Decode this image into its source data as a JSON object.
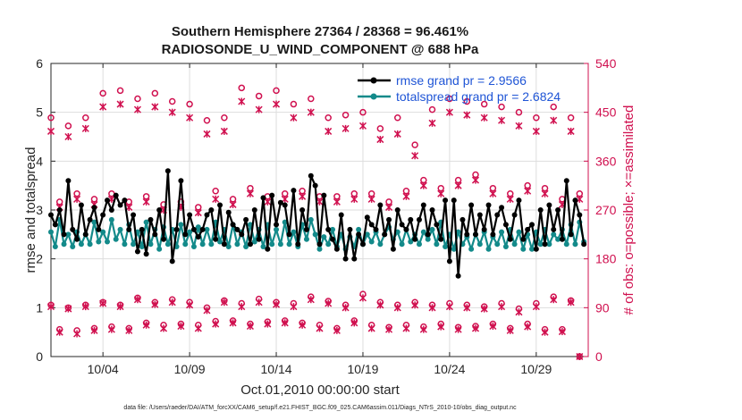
{
  "chart_data": {
    "type": "line",
    "title": "Southern Hemisphere 27364 / 28368 = 96.461%",
    "subtitle": "RADIOSONDE_U_WIND_COMPONENT @ 688 hPa",
    "xlabel": "Oct.01,2010 00:00:00 start",
    "ylabel": "rmse and totalspread",
    "ylabel_right": "# of obs: o=possible; ×=assimilated",
    "footer": "data file: /Users/raeder/DAI/ATM_forcXX/CAM6_setup/f.e21.FHIST_BGC.f09_025.CAM6assim.011/Diags_NTrS_2010-10/obs_diag_output.nc",
    "x_range": [
      1.0,
      32.0
    ],
    "xticks": [
      4,
      9,
      14,
      19,
      24,
      29
    ],
    "xtick_labels": [
      "10/04",
      "10/09",
      "10/14",
      "10/19",
      "10/24",
      "10/29"
    ],
    "ylim": [
      0,
      6
    ],
    "yticks": [
      0,
      1,
      2,
      3,
      4,
      5,
      6
    ],
    "ylim_right": [
      0,
      540
    ],
    "yticks_right": [
      0,
      90,
      180,
      270,
      360,
      450,
      540
    ],
    "legend": [
      {
        "name": "rmse grand pr = 2.9566",
        "color": "#000000"
      },
      {
        "name": "totalspread grand pr = 2.6824",
        "color": "#138a8a"
      }
    ],
    "series": [
      {
        "name": "rmse",
        "color": "#000000",
        "x": [
          1.0,
          1.25,
          1.5,
          1.75,
          2.0,
          2.25,
          2.5,
          2.75,
          3.0,
          3.25,
          3.5,
          3.75,
          4.0,
          4.25,
          4.5,
          4.75,
          5.0,
          5.25,
          5.5,
          5.75,
          6.0,
          6.25,
          6.5,
          6.75,
          7.0,
          7.25,
          7.5,
          7.75,
          8.0,
          8.25,
          8.5,
          8.75,
          9.0,
          9.25,
          9.5,
          9.75,
          10.0,
          10.25,
          10.5,
          10.75,
          11.0,
          11.25,
          11.5,
          11.75,
          12.0,
          12.25,
          12.5,
          12.75,
          13.0,
          13.25,
          13.5,
          13.75,
          14.0,
          14.25,
          14.5,
          14.75,
          15.0,
          15.25,
          15.5,
          15.75,
          16.0,
          16.25,
          16.5,
          16.75,
          17.0,
          17.25,
          17.5,
          17.75,
          18.0,
          18.25,
          18.5,
          18.75,
          19.0,
          19.25,
          19.5,
          19.75,
          20.0,
          20.25,
          20.5,
          20.75,
          21.0,
          21.25,
          21.5,
          21.75,
          22.0,
          22.25,
          22.5,
          22.75,
          23.0,
          23.25,
          23.5,
          23.75,
          24.0,
          24.25,
          24.5,
          24.75,
          25.0,
          25.25,
          25.5,
          25.75,
          26.0,
          26.25,
          26.5,
          26.75,
          27.0,
          27.25,
          27.5,
          27.75,
          28.0,
          28.25,
          28.5,
          28.75,
          29.0,
          29.25,
          29.5,
          29.75,
          30.0,
          30.25,
          30.5,
          30.75,
          31.0,
          31.25,
          31.5,
          31.75
        ],
        "values": [
          2.9,
          2.7,
          3.0,
          2.5,
          3.6,
          2.6,
          2.4,
          3.1,
          2.5,
          2.8,
          3.05,
          2.6,
          2.9,
          3.2,
          3.0,
          3.3,
          3.1,
          3.2,
          2.6,
          2.9,
          2.15,
          2.6,
          2.1,
          2.8,
          2.5,
          3.0,
          2.4,
          3.8,
          1.95,
          2.6,
          3.6,
          2.5,
          2.9,
          2.6,
          2.45,
          2.6,
          2.9,
          3.0,
          2.4,
          3.1,
          2.3,
          2.95,
          2.7,
          2.6,
          2.5,
          2.8,
          2.3,
          3.0,
          2.4,
          3.25,
          2.2,
          3.3,
          2.7,
          3.15,
          3.1,
          2.5,
          3.4,
          2.3,
          3.0,
          2.6,
          3.7,
          3.5,
          2.3,
          3.3,
          2.6,
          2.4,
          2.2,
          2.9,
          2.0,
          2.6,
          2.0,
          2.5,
          2.3,
          2.85,
          2.7,
          2.6,
          3.1,
          2.5,
          2.8,
          2.2,
          3.0,
          2.7,
          2.6,
          2.8,
          2.4,
          2.8,
          3.1,
          2.5,
          3.0,
          2.7,
          2.4,
          3.2,
          1.95,
          3.2,
          1.65,
          2.8,
          2.5,
          3.1,
          2.5,
          2.9,
          2.6,
          3.1,
          2.5,
          2.9,
          3.05,
          2.7,
          2.4,
          2.9,
          3.2,
          2.4,
          2.6,
          2.7,
          2.2,
          3.0,
          2.3,
          3.1,
          2.6,
          3.0,
          2.4,
          3.6,
          2.5,
          3.2,
          2.9,
          2.3
        ]
      },
      {
        "name": "totalspread",
        "color": "#138a8a",
        "x": [
          1.0,
          1.25,
          1.5,
          1.75,
          2.0,
          2.25,
          2.5,
          2.75,
          3.0,
          3.25,
          3.5,
          3.75,
          4.0,
          4.25,
          4.5,
          4.75,
          5.0,
          5.25,
          5.5,
          5.75,
          6.0,
          6.25,
          6.5,
          6.75,
          7.0,
          7.25,
          7.5,
          7.75,
          8.0,
          8.25,
          8.5,
          8.75,
          9.0,
          9.25,
          9.5,
          9.75,
          10.0,
          10.25,
          10.5,
          10.75,
          11.0,
          11.25,
          11.5,
          11.75,
          12.0,
          12.25,
          12.5,
          12.75,
          13.0,
          13.25,
          13.5,
          13.75,
          14.0,
          14.25,
          14.5,
          14.75,
          15.0,
          15.25,
          15.5,
          15.75,
          16.0,
          16.25,
          16.5,
          16.75,
          17.0,
          17.25,
          17.5,
          17.75,
          18.0,
          18.25,
          18.5,
          18.75,
          19.0,
          19.25,
          19.5,
          19.75,
          20.0,
          20.25,
          20.5,
          20.75,
          21.0,
          21.25,
          21.5,
          21.75,
          22.0,
          22.25,
          22.5,
          22.75,
          23.0,
          23.25,
          23.5,
          23.75,
          24.0,
          24.25,
          24.5,
          24.75,
          25.0,
          25.25,
          25.5,
          25.75,
          26.0,
          26.25,
          26.5,
          26.75,
          27.0,
          27.25,
          27.5,
          27.75,
          28.0,
          28.25,
          28.5,
          28.75,
          29.0,
          29.25,
          29.5,
          29.75,
          30.0,
          30.25,
          30.5,
          30.75,
          31.0,
          31.25,
          31.5,
          31.75
        ],
        "values": [
          2.55,
          2.25,
          2.8,
          2.3,
          2.5,
          2.25,
          2.55,
          2.3,
          2.5,
          2.3,
          2.75,
          2.35,
          2.55,
          2.35,
          2.8,
          2.4,
          2.6,
          2.3,
          2.7,
          2.3,
          2.55,
          2.25,
          2.75,
          2.3,
          2.6,
          2.2,
          2.65,
          2.3,
          2.6,
          2.25,
          2.7,
          2.3,
          2.55,
          2.25,
          2.65,
          2.3,
          2.6,
          2.3,
          2.75,
          2.35,
          2.6,
          2.25,
          2.7,
          2.3,
          2.55,
          2.25,
          2.7,
          2.35,
          2.6,
          2.25,
          2.7,
          2.3,
          2.6,
          2.3,
          2.75,
          2.3,
          2.55,
          2.25,
          2.7,
          2.4,
          2.8,
          2.5,
          2.2,
          2.45,
          2.3,
          2.6,
          2.25,
          2.5,
          2.2,
          2.45,
          2.25,
          2.6,
          2.3,
          2.5,
          2.35,
          2.55,
          2.3,
          2.5,
          2.65,
          2.4,
          2.55,
          2.3,
          2.6,
          2.35,
          2.5,
          2.3,
          2.55,
          2.4,
          2.6,
          2.3,
          2.75,
          2.25,
          2.5,
          2.2,
          2.55,
          2.3,
          2.45,
          2.2,
          2.5,
          2.3,
          2.55,
          2.2,
          2.45,
          2.3,
          2.55,
          2.25,
          2.6,
          2.3,
          2.55,
          2.2,
          2.5,
          2.2,
          2.55,
          2.3,
          2.6,
          2.3,
          2.5,
          2.4,
          2.6,
          2.3,
          2.7,
          2.3,
          2.75,
          2.35
        ]
      },
      {
        "name": "obs possible",
        "color": "#d0104f",
        "marker": "o",
        "x": [
          1.0,
          1.5,
          2.0,
          2.5,
          3.0,
          3.5,
          4.0,
          4.5,
          5.0,
          5.5,
          6.0,
          6.5,
          7.0,
          7.5,
          8.0,
          8.5,
          9.0,
          9.5,
          10.0,
          10.5,
          11.0,
          11.5,
          12.0,
          12.5,
          13.0,
          13.5,
          14.0,
          14.5,
          15.0,
          15.5,
          16.0,
          16.5,
          17.0,
          17.5,
          18.0,
          18.5,
          19.0,
          19.5,
          20.0,
          20.5,
          21.0,
          21.5,
          22.0,
          22.5,
          23.0,
          23.5,
          24.0,
          24.5,
          25.0,
          25.5,
          26.0,
          26.5,
          27.0,
          27.5,
          28.0,
          28.5,
          29.0,
          29.5,
          30.0,
          30.5,
          31.0,
          31.5
        ],
        "values": [
          95,
          50,
          90,
          48,
          95,
          52,
          100,
          55,
          95,
          52,
          108,
          62,
          100,
          58,
          105,
          60,
          100,
          58,
          90,
          65,
          103,
          66,
          98,
          60,
          106,
          64,
          100,
          66,
          98,
          62,
          110,
          58,
          102,
          52,
          95,
          66,
          115,
          58,
          100,
          54,
          95,
          58,
          100,
          55,
          95,
          60,
          98,
          54,
          95,
          56,
          92,
          60,
          98,
          52,
          88,
          60,
          98,
          50,
          110,
          50,
          103,
          0
        ]
      },
      {
        "name": "obs assimilated",
        "color": "#d0104f",
        "marker": "x",
        "x": [
          1.0,
          1.5,
          2.0,
          2.5,
          3.0,
          3.5,
          4.0,
          4.5,
          5.0,
          5.5,
          6.0,
          6.5,
          7.0,
          7.5,
          8.0,
          8.5,
          9.0,
          9.5,
          10.0,
          10.5,
          11.0,
          11.5,
          12.0,
          12.5,
          13.0,
          13.5,
          14.0,
          14.5,
          15.0,
          15.5,
          16.0,
          16.5,
          17.0,
          17.5,
          18.0,
          18.5,
          19.0,
          19.5,
          20.0,
          20.5,
          21.0,
          21.5,
          22.0,
          22.5,
          23.0,
          23.5,
          24.0,
          24.5,
          25.0,
          25.5,
          26.0,
          26.5,
          27.0,
          27.5,
          28.0,
          28.5,
          29.0,
          29.5,
          30.0,
          30.5,
          31.0,
          31.5
        ],
        "values": [
          92,
          45,
          88,
          42,
          92,
          48,
          98,
          50,
          92,
          48,
          105,
          58,
          96,
          52,
          100,
          56,
          95,
          52,
          85,
          60,
          100,
          62,
          92,
          56,
          100,
          60,
          96,
          62,
          92,
          58,
          105,
          52,
          98,
          48,
          90,
          62,
          108,
          52,
          95,
          50,
          90,
          52,
          95,
          50,
          90,
          55,
          92,
          50,
          90,
          52,
          88,
          56,
          92,
          48,
          82,
          55,
          92,
          45,
          105,
          46,
          100,
          0
        ]
      },
      {
        "name": "obs possible (upper)",
        "color": "#d0104f",
        "marker": "o",
        "x": [
          1.0,
          1.5,
          2.0,
          2.5,
          3.0,
          3.5,
          4.0,
          4.5,
          5.0,
          5.5,
          6.0,
          6.5,
          7.0,
          7.5,
          8.0,
          8.5,
          9.0,
          9.5,
          10.0,
          10.5,
          11.0,
          11.5,
          12.0,
          12.5,
          13.0,
          13.5,
          14.0,
          14.5,
          15.0,
          15.5,
          16.0,
          16.5,
          17.0,
          17.5,
          18.0,
          18.5,
          19.0,
          19.5,
          20.0,
          20.5,
          21.0,
          21.5,
          22.0,
          22.5,
          23.0,
          23.5,
          24.0,
          24.5,
          25.0,
          25.5,
          26.0,
          26.5,
          27.0,
          27.5,
          28.0,
          28.5,
          29.0,
          29.5,
          30.0,
          30.5,
          31.0,
          31.5
        ],
        "values": [
          440,
          285,
          425,
          300,
          440,
          290,
          485,
          300,
          490,
          285,
          475,
          295,
          485,
          280,
          470,
          285,
          465,
          275,
          435,
          305,
          440,
          290,
          495,
          310,
          480,
          295,
          490,
          300,
          465,
          305,
          475,
          295,
          440,
          295,
          445,
          300,
          450,
          300,
          420,
          285,
          440,
          305,
          390,
          325,
          455,
          310,
          475,
          325,
          470,
          335,
          465,
          310,
          460,
          300,
          450,
          315,
          440,
          310,
          460,
          290,
          440,
          300
        ]
      },
      {
        "name": "obs assimilated (upper)",
        "color": "#d0104f",
        "marker": "x",
        "x": [
          1.0,
          1.5,
          2.0,
          2.5,
          3.0,
          3.5,
          4.0,
          4.5,
          5.0,
          5.5,
          6.0,
          6.5,
          7.0,
          7.5,
          8.0,
          8.5,
          9.0,
          9.5,
          10.0,
          10.5,
          11.0,
          11.5,
          12.0,
          12.5,
          13.0,
          13.5,
          14.0,
          14.5,
          15.0,
          15.5,
          16.0,
          16.5,
          17.0,
          17.5,
          18.0,
          18.5,
          19.0,
          19.5,
          20.0,
          20.5,
          21.0,
          21.5,
          22.0,
          22.5,
          23.0,
          23.5,
          24.0,
          24.5,
          25.0,
          25.5,
          26.0,
          26.5,
          27.0,
          27.5,
          28.0,
          28.5,
          29.0,
          29.5,
          30.0,
          30.5,
          31.0,
          31.5
        ],
        "values": [
          415,
          275,
          405,
          290,
          420,
          280,
          460,
          290,
          465,
          275,
          455,
          285,
          460,
          270,
          450,
          275,
          440,
          265,
          410,
          290,
          415,
          280,
          470,
          300,
          455,
          285,
          465,
          290,
          440,
          295,
          450,
          285,
          415,
          285,
          420,
          290,
          425,
          290,
          400,
          275,
          410,
          295,
          370,
          315,
          430,
          300,
          450,
          315,
          445,
          325,
          440,
          300,
          435,
          290,
          425,
          305,
          415,
          300,
          435,
          280,
          415,
          290
        ]
      }
    ]
  }
}
